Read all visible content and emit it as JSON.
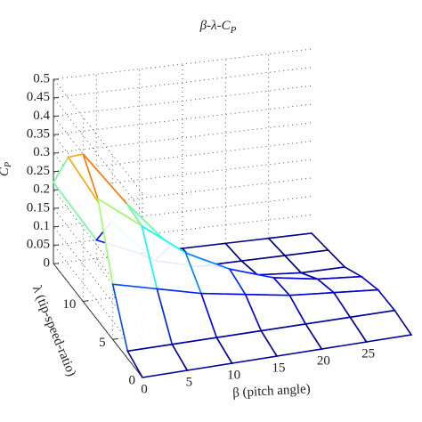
{
  "chart_data": {
    "type": "surface",
    "title": "β-λ-C",
    "title_subscript": "P",
    "xlabel": "β (pitch angle)",
    "ylabel": "λ (tip-speed-ratio)",
    "zlabel": "C",
    "zlabel_subscript": "P",
    "x": [
      0,
      5,
      10,
      15,
      20,
      25,
      30
    ],
    "y": [
      0,
      2.5,
      5,
      7.5,
      10,
      12.5,
      15
    ],
    "z": [
      [
        0,
        0,
        0,
        0,
        0,
        0,
        0
      ],
      [
        0.02,
        0.02,
        0.02,
        0.02,
        0.02,
        0.02,
        0.02
      ],
      [
        0.15,
        0.12,
        0.09,
        0.07,
        0.05,
        0.04,
        0.03
      ],
      [
        0.33,
        0.24,
        0.15,
        0.09,
        0.05,
        0.03,
        0.02
      ],
      [
        0.4,
        0.25,
        0.12,
        0.05,
        0.01,
        0,
        0
      ],
      [
        0.34,
        0.15,
        0.03,
        0,
        0,
        0,
        0
      ],
      [
        0.22,
        0.05,
        0,
        0,
        0,
        0,
        0
      ]
    ],
    "xlim": [
      0,
      30
    ],
    "ylim": [
      0,
      15
    ],
    "zlim": [
      0,
      0.5
    ],
    "xticks": [
      0,
      5,
      10,
      15,
      20,
      25
    ],
    "yticks": [
      0,
      5,
      10
    ],
    "zticks": [
      0,
      0.05,
      0.1,
      0.15,
      0.2,
      0.25,
      0.3,
      0.35,
      0.4,
      0.45,
      0.5
    ],
    "colormap": "jet",
    "grid": true
  }
}
